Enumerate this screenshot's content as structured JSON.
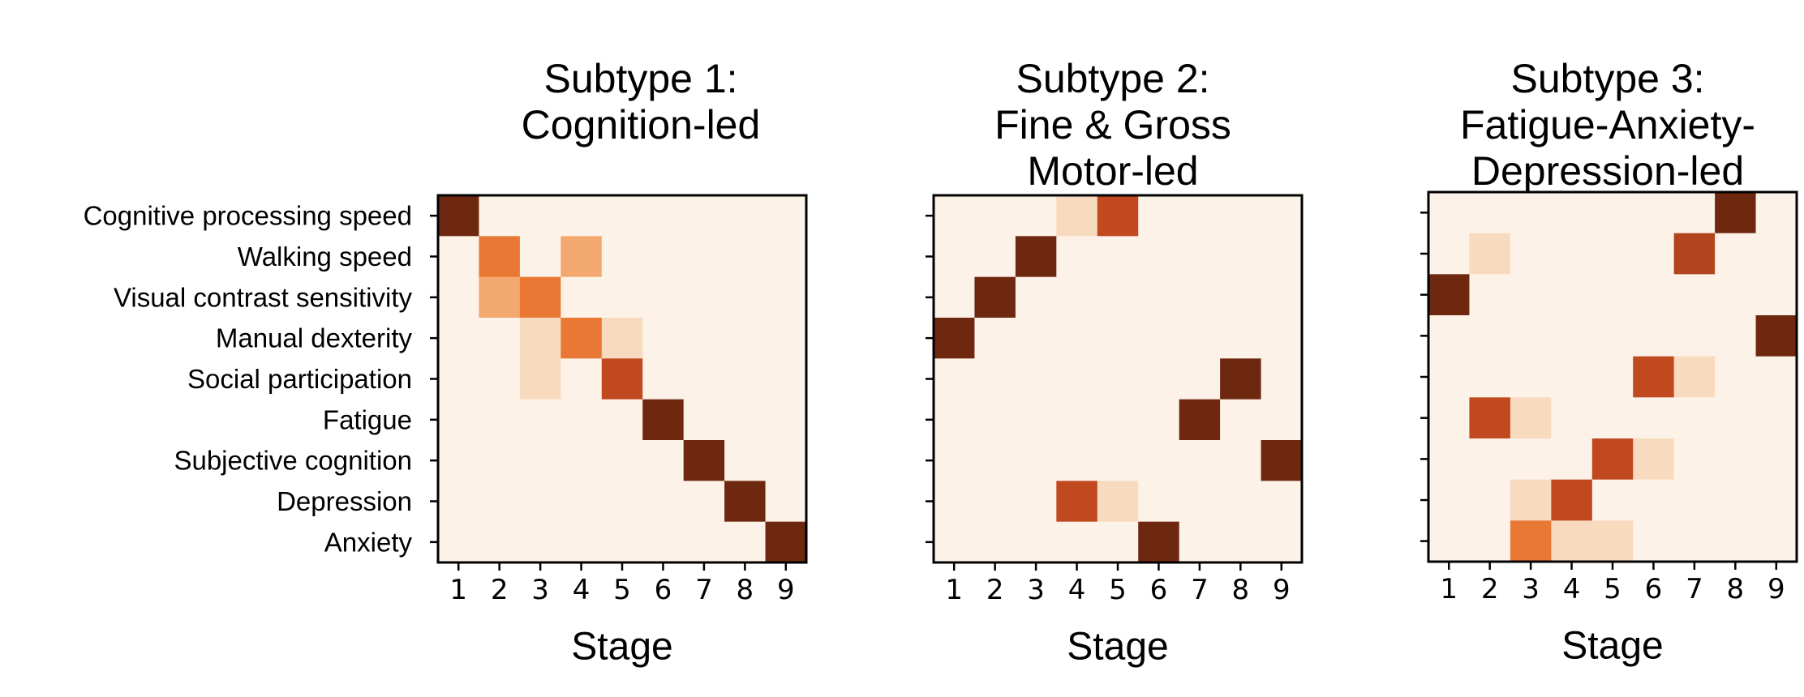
{
  "chart_data": [
    {
      "type": "heatmap",
      "title": [
        "Subtype 1:",
        "Cognition-led"
      ],
      "xlabel": "Stage",
      "ylabel": "",
      "x": [
        "1",
        "2",
        "3",
        "4",
        "5",
        "6",
        "7",
        "8",
        "9"
      ],
      "y": [
        "Cognitive processing speed",
        "Walking speed",
        "Visual contrast sensitivity",
        "Manual dexterity",
        "Social participation",
        "Fatigue",
        "Subjective cognition",
        "Depression",
        "Anxiety"
      ],
      "values": [
        [
          1.0,
          0.0,
          0.0,
          0.0,
          0.0,
          0.0,
          0.0,
          0.0,
          0.0
        ],
        [
          0.0,
          0.55,
          0.0,
          0.4,
          0.0,
          0.0,
          0.0,
          0.0,
          0.0
        ],
        [
          0.0,
          0.4,
          0.55,
          0.0,
          0.0,
          0.0,
          0.0,
          0.0,
          0.0
        ],
        [
          0.0,
          0.0,
          0.15,
          0.55,
          0.15,
          0.0,
          0.0,
          0.0,
          0.0
        ],
        [
          0.0,
          0.0,
          0.15,
          0.0,
          0.7,
          0.0,
          0.0,
          0.0,
          0.0
        ],
        [
          0.0,
          0.0,
          0.0,
          0.0,
          0.0,
          1.0,
          0.0,
          0.0,
          0.0
        ],
        [
          0.0,
          0.0,
          0.0,
          0.0,
          0.0,
          0.0,
          1.0,
          0.0,
          0.0
        ],
        [
          0.0,
          0.0,
          0.0,
          0.0,
          0.0,
          0.0,
          0.0,
          1.0,
          0.0
        ],
        [
          0.0,
          0.0,
          0.0,
          0.0,
          0.0,
          0.0,
          0.0,
          0.0,
          1.0
        ]
      ],
      "colormap": "Oranges"
    },
    {
      "type": "heatmap",
      "title": [
        "Subtype 2:",
        "Fine & Gross",
        "Motor-led"
      ],
      "xlabel": "Stage",
      "ylabel": "",
      "x": [
        "1",
        "2",
        "3",
        "4",
        "5",
        "6",
        "7",
        "8",
        "9"
      ],
      "values": [
        [
          0.0,
          0.0,
          0.0,
          0.15,
          0.7,
          0.0,
          0.0,
          0.0,
          0.0
        ],
        [
          0.0,
          0.0,
          1.0,
          0.0,
          0.0,
          0.0,
          0.0,
          0.0,
          0.0
        ],
        [
          0.0,
          1.0,
          0.0,
          0.0,
          0.0,
          0.0,
          0.0,
          0.0,
          0.0
        ],
        [
          1.0,
          0.0,
          0.0,
          0.0,
          0.0,
          0.0,
          0.0,
          0.0,
          0.0
        ],
        [
          0.0,
          0.0,
          0.0,
          0.0,
          0.0,
          0.0,
          0.0,
          1.0,
          0.0
        ],
        [
          0.0,
          0.0,
          0.0,
          0.0,
          0.0,
          0.0,
          1.0,
          0.0,
          0.0
        ],
        [
          0.0,
          0.0,
          0.0,
          0.0,
          0.0,
          0.0,
          0.0,
          0.0,
          1.0
        ],
        [
          0.0,
          0.0,
          0.0,
          0.7,
          0.15,
          0.0,
          0.0,
          0.0,
          0.0
        ],
        [
          0.0,
          0.0,
          0.0,
          0.0,
          0.0,
          1.0,
          0.0,
          0.0,
          0.0
        ]
      ],
      "colormap": "Oranges"
    },
    {
      "type": "heatmap",
      "title": [
        "Subtype 3:",
        "Fatigue-Anxiety-",
        "Depression-led"
      ],
      "xlabel": "Stage",
      "ylabel": "",
      "x": [
        "1",
        "2",
        "3",
        "4",
        "5",
        "6",
        "7",
        "8",
        "9"
      ],
      "values": [
        [
          0.0,
          0.0,
          0.0,
          0.0,
          0.0,
          0.0,
          0.0,
          1.0,
          0.0
        ],
        [
          0.0,
          0.15,
          0.0,
          0.0,
          0.0,
          0.0,
          0.75,
          0.0,
          0.0
        ],
        [
          1.0,
          0.0,
          0.0,
          0.0,
          0.0,
          0.0,
          0.0,
          0.0,
          0.0
        ],
        [
          0.0,
          0.0,
          0.0,
          0.0,
          0.0,
          0.0,
          0.0,
          0.0,
          1.0
        ],
        [
          0.0,
          0.0,
          0.0,
          0.0,
          0.0,
          0.7,
          0.15,
          0.0,
          0.0
        ],
        [
          0.0,
          0.7,
          0.15,
          0.0,
          0.0,
          0.0,
          0.0,
          0.0,
          0.0
        ],
        [
          0.0,
          0.0,
          0.0,
          0.0,
          0.7,
          0.15,
          0.0,
          0.0,
          0.0
        ],
        [
          0.0,
          0.0,
          0.15,
          0.7,
          0.0,
          0.0,
          0.0,
          0.0,
          0.0
        ],
        [
          0.0,
          0.0,
          0.55,
          0.15,
          0.15,
          0.0,
          0.0,
          0.0,
          0.0
        ]
      ],
      "colormap": "Oranges"
    }
  ]
}
